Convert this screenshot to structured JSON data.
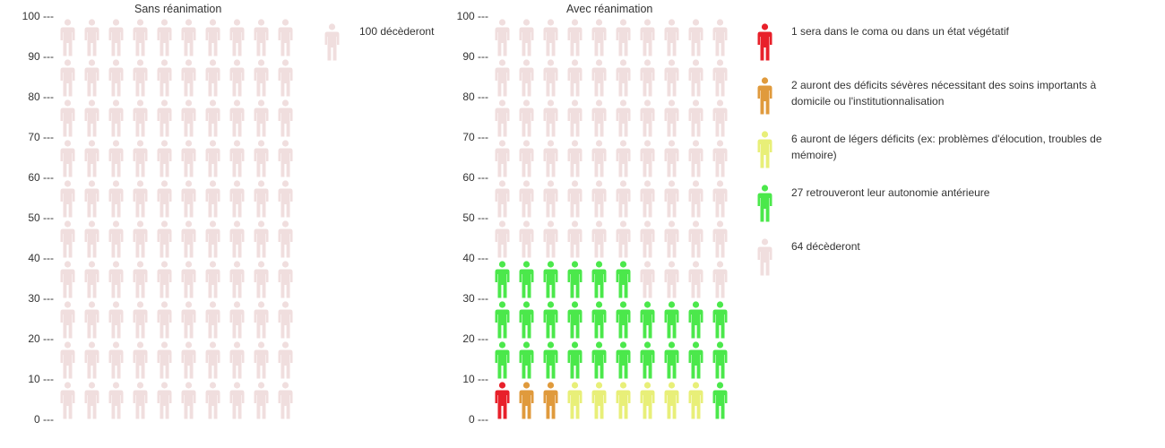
{
  "charts": {
    "left": {
      "title": "Sans réanimation",
      "legend": [
        {
          "label": "100 décèderont",
          "color": "#f0dede"
        }
      ]
    },
    "right": {
      "title": "Avec réanimation",
      "legend": [
        {
          "label": "1 sera dans le coma ou dans un état végétatif",
          "color": "#e8202a"
        },
        {
          "label": "2 auront des déficits sévères nécessitant des soins importants à domicile ou l'institutionnalisation",
          "color": "#e09a3c"
        },
        {
          "label": "6 auront de légers déficits (ex: problèmes d'élocution, troubles de mémoire)",
          "color": "#e8ef78"
        },
        {
          "label": "27 retrouveront leur autonomie antérieure",
          "color": "#4be84b"
        },
        {
          "label": "64 décèderont",
          "color": "#f0dede"
        }
      ]
    }
  },
  "y_ticks": [
    "0 ---",
    "10 ---",
    "20 ---",
    "30 ---",
    "40 ---",
    "50 ---",
    "60 ---",
    "70 ---",
    "80 ---",
    "90 ---",
    "100 ---"
  ],
  "chart_data": [
    {
      "type": "pictogram",
      "title": "Sans réanimation",
      "total": 100,
      "icons_per_row": 10,
      "ylim": [
        0,
        100
      ],
      "yticks": [
        0,
        10,
        20,
        30,
        40,
        50,
        60,
        70,
        80,
        90,
        100
      ],
      "series": [
        {
          "name": "100 décèderont",
          "value": 100,
          "color": "#f0dede"
        }
      ]
    },
    {
      "type": "pictogram",
      "title": "Avec réanimation",
      "total": 100,
      "icons_per_row": 10,
      "ylim": [
        0,
        100
      ],
      "yticks": [
        0,
        10,
        20,
        30,
        40,
        50,
        60,
        70,
        80,
        90,
        100
      ],
      "series": [
        {
          "name": "1 sera dans le coma ou dans un état végétatif",
          "value": 1,
          "color": "#e8202a"
        },
        {
          "name": "2 auront des déficits sévères nécessitant des soins importants à domicile ou l'institutionnalisation",
          "value": 2,
          "color": "#e09a3c"
        },
        {
          "name": "6 auront de légers déficits (ex: problèmes d'élocution, troubles de mémoire)",
          "value": 6,
          "color": "#e8ef78"
        },
        {
          "name": "27 retrouveront leur autonomie antérieure",
          "value": 27,
          "color": "#4be84b"
        },
        {
          "name": "64 décèderont",
          "value": 64,
          "color": "#f0dede"
        }
      ]
    }
  ]
}
